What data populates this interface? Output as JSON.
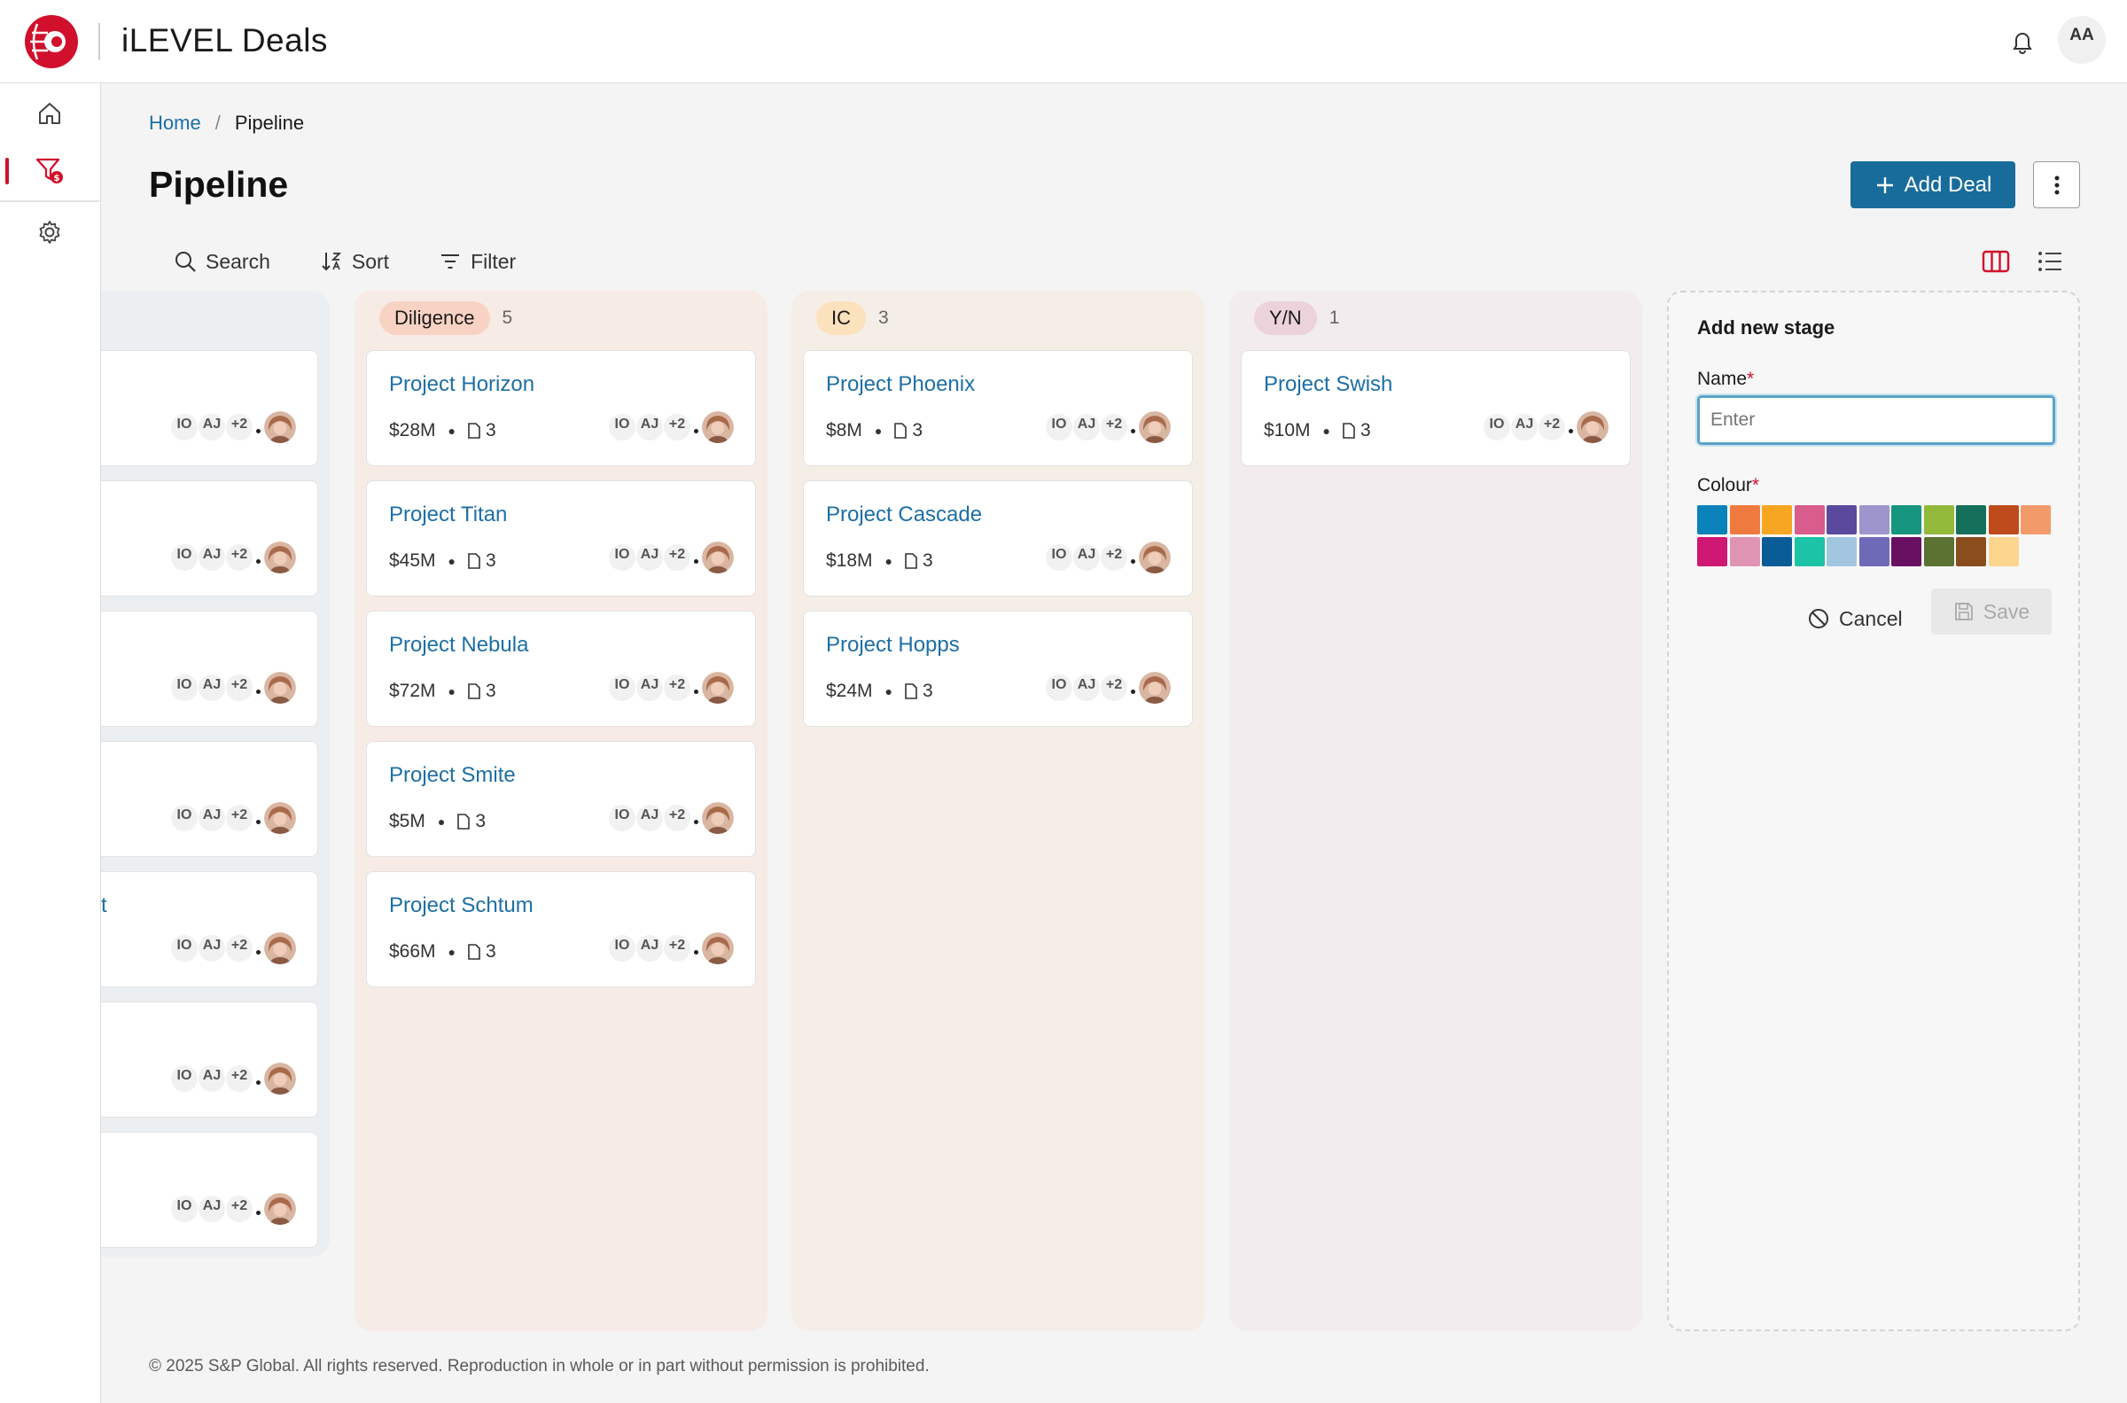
{
  "app": {
    "title": "iLEVEL Deals",
    "user_initials": "AA"
  },
  "nav": {
    "items": [
      {
        "icon": "home-icon"
      },
      {
        "icon": "pipeline-filter-icon",
        "active": true
      },
      {
        "icon": "gear-icon"
      }
    ]
  },
  "breadcrumb": {
    "home": "Home",
    "separator": "/",
    "current": "Pipeline"
  },
  "page": {
    "title": "Pipeline",
    "add_deal_label": "Add Deal"
  },
  "toolbar": {
    "search": "Search",
    "sort": "Sort",
    "filter": "Filter"
  },
  "columns": [
    {
      "stage": "",
      "count": "",
      "cards": [
        {
          "title": "",
          "value": "",
          "docs": ""
        },
        {
          "title": "",
          "value": "",
          "docs": ""
        },
        {
          "title": "",
          "value": "",
          "docs": ""
        },
        {
          "title": "",
          "value": "",
          "docs": ""
        },
        {
          "title": "t",
          "value": "",
          "docs": ""
        },
        {
          "title": "",
          "value": "",
          "docs": ""
        },
        {
          "title": "",
          "value": "",
          "docs": ""
        }
      ]
    },
    {
      "stage": "Diligence",
      "count": "5",
      "cards": [
        {
          "title": "Project Horizon",
          "value": "$28M",
          "docs": "3"
        },
        {
          "title": "Project Titan",
          "value": "$45M",
          "docs": "3"
        },
        {
          "title": "Project Nebula",
          "value": "$72M",
          "docs": "3"
        },
        {
          "title": "Project Smite",
          "value": "$5M",
          "docs": "3"
        },
        {
          "title": "Project Schtum",
          "value": "$66M",
          "docs": "3"
        }
      ]
    },
    {
      "stage": "IC",
      "count": "3",
      "cards": [
        {
          "title": "Project Phoenix",
          "value": "$8M",
          "docs": "3"
        },
        {
          "title": "Project Cascade",
          "value": "$18M",
          "docs": "3"
        },
        {
          "title": "Project Hopps",
          "value": "$24M",
          "docs": "3"
        }
      ]
    },
    {
      "stage": "Y/N",
      "count": "1",
      "cards": [
        {
          "title": "Project Swish",
          "value": "$10M",
          "docs": "3"
        }
      ]
    }
  ],
  "people": {
    "a": "IO",
    "b": "AJ",
    "more": "+2"
  },
  "add_stage": {
    "title": "Add new stage",
    "name_label": "Name",
    "name_placeholder": "Enter",
    "colour_label": "Colour",
    "required_mark": "*",
    "cancel": "Cancel",
    "save": "Save",
    "colours": [
      "#0b82b9",
      "#ef7a3f",
      "#f6a623",
      "#d85c8c",
      "#5a4a9e",
      "#9e95cc",
      "#16957f",
      "#93b93a",
      "#14705a",
      "#bf4a1c",
      "#f39a6a",
      "#cf1774",
      "#e094b4",
      "#0a5c96",
      "#1cc3a6",
      "#a3c6e0",
      "#6f6ab7",
      "#6a1063",
      "#5b7232",
      "#8a4e1e",
      "#fcd58f"
    ]
  },
  "colors": {
    "accent": "#186c9c",
    "brand_red": "#d0102c"
  },
  "footer": "© 2025 S&P Global. All rights reserved. Reproduction in whole or in part without permission is prohibited."
}
